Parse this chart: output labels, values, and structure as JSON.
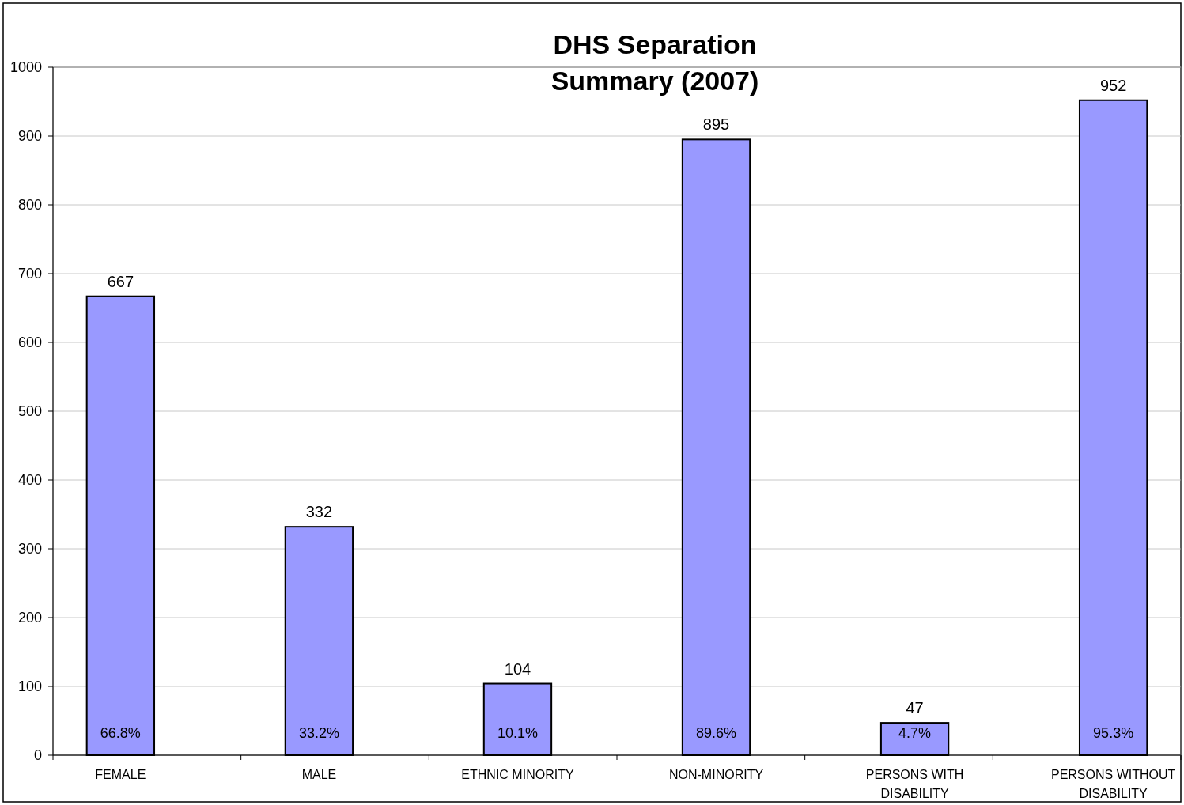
{
  "chart_data": {
    "type": "bar",
    "title": "DHS Separation Summary (2007)",
    "categories": [
      "FEMALE",
      "MALE",
      "ETHNIC MINORITY",
      "NON-MINORITY",
      "PERSONS WITH DISABILITY",
      "PERSONS WITHOUT DISABILITY"
    ],
    "values": [
      667,
      332,
      104,
      895,
      47,
      952
    ],
    "color": "#9999ff",
    "data_labels": true,
    "ylim": [
      0,
      1000
    ],
    "yticks": [
      0,
      100,
      200,
      300,
      400,
      500,
      600,
      700,
      800,
      900,
      1000
    ],
    "grid": "y",
    "annotations": [
      {
        "text": "66.8%",
        "x": "FEMALE",
        "y": 0
      },
      {
        "text": "33.2%",
        "x": "MALE",
        "y": 0
      },
      {
        "text": "10.1%",
        "x": "ETHNIC MINORITY",
        "y": 0
      },
      {
        "text": "89.6%",
        "x": "NON-MINORITY",
        "y": 0
      },
      {
        "text": "4.7%",
        "x": "PERSONS WITH DISABILITY",
        "y": 0
      },
      {
        "text": "95.3%",
        "x": "PERSONS WITHOUT DISABILITY",
        "y": 0
      }
    ]
  }
}
